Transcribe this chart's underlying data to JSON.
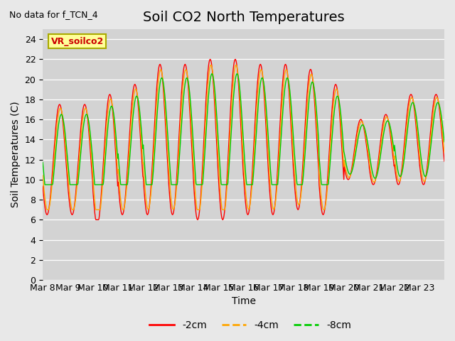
{
  "title": "Soil CO2 North Temperatures",
  "ylabel": "Soil Temperatures (C)",
  "xlabel": "Time",
  "no_data_label": "No data for f_TCN_4",
  "legend_box_label": "VR_soilco2",
  "ylim": [
    0,
    25
  ],
  "yticks": [
    0,
    2,
    4,
    6,
    8,
    10,
    12,
    14,
    16,
    18,
    20,
    22,
    24
  ],
  "xtick_labels": [
    "Mar 8",
    "Mar 9",
    "Mar 10",
    "Mar 11",
    "Mar 12",
    "Mar 13",
    "Mar 14",
    "Mar 15",
    "Mar 16",
    "Mar 17",
    "Mar 18",
    "Mar 19",
    "Mar 20",
    "Mar 21",
    "Mar 22",
    "Mar 23"
  ],
  "line_colors": {
    "m2cm": "#ff0000",
    "m4cm": "#ffa500",
    "m8cm": "#00cc00"
  },
  "legend_labels": [
    "-2cm",
    "-4cm",
    "-8cm"
  ],
  "background_color": "#e8e8e8",
  "plot_bg_color": "#d3d3d3",
  "title_fontsize": 14,
  "label_fontsize": 10,
  "tick_fontsize": 9,
  "num_points": 960,
  "days": 16
}
